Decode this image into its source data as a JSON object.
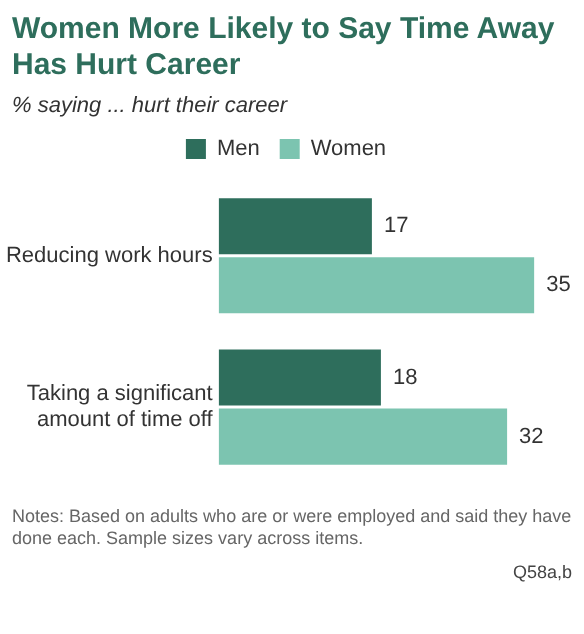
{
  "chart_data": {
    "type": "bar",
    "orientation": "horizontal",
    "title": "Women More Likely to Say Time Away Has Hurt Career",
    "subtitle": "% saying ... hurt their career",
    "categories": [
      "Reducing work hours",
      "Taking a significant amount of time off"
    ],
    "series": [
      {
        "name": "Men",
        "color": "#2e6e5c",
        "values": [
          17,
          18
        ]
      },
      {
        "name": "Women",
        "color": "#7cc4b0",
        "values": [
          35,
          32
        ]
      }
    ],
    "data_labels": true,
    "legend": "top",
    "grid": false,
    "annotations": [
      "Notes: Based on adults who are or were employed and said they have done each. Sample sizes vary across items.",
      "Q58a,b"
    ]
  }
}
